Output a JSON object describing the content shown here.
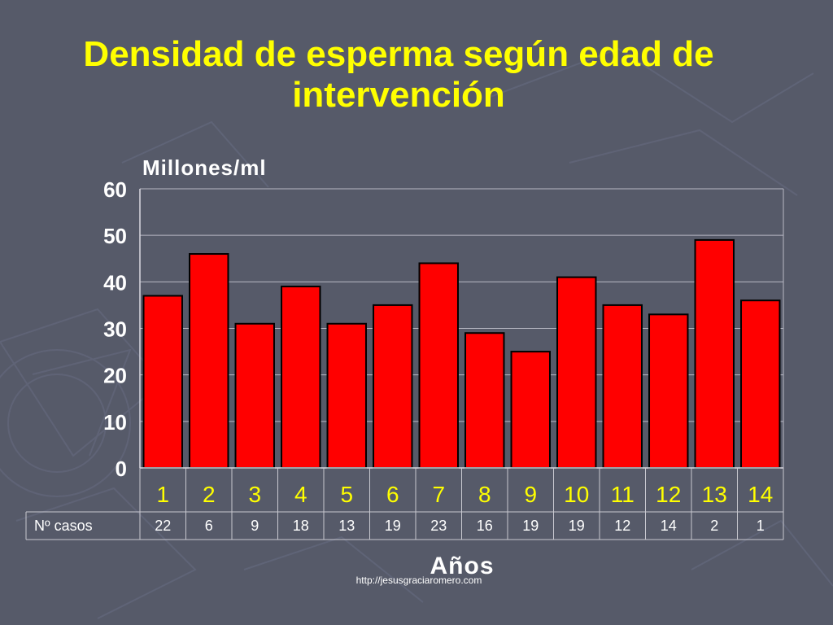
{
  "slide": {
    "title_line1": "Densidad de esperma según edad de",
    "title_line2": "intervención",
    "footer_url": "http://jesusgraciaromero.com",
    "title_color": "#ffff00",
    "background_color": "#565a69"
  },
  "chart_data": {
    "type": "bar",
    "ylabel": "Millones/ml",
    "xlabel": "Años",
    "categories": [
      "1",
      "2",
      "3",
      "4",
      "5",
      "6",
      "7",
      "8",
      "9",
      "10",
      "11",
      "12",
      "13",
      "14"
    ],
    "values": [
      37,
      46,
      31,
      39,
      31,
      35,
      44,
      29,
      25,
      41,
      35,
      33,
      49,
      36
    ],
    "ylim": [
      0,
      60
    ],
    "yticks": [
      0,
      10,
      20,
      30,
      40,
      50,
      60
    ],
    "grid": true,
    "bar_color": "#ff0000",
    "table": {
      "row_label": "Nº casos",
      "values": [
        "22",
        "6",
        "9",
        "18",
        "13",
        "19",
        "23",
        "16",
        "19",
        "19",
        "12",
        "14",
        "2",
        "1"
      ]
    }
  }
}
